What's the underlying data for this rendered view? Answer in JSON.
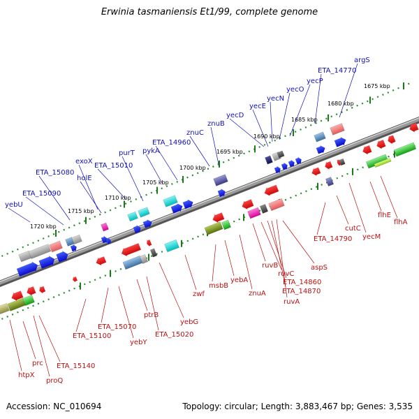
{
  "title": "Erwinia tasmaniensis Et1/99, complete genome",
  "footer": {
    "accession": "Accession: NC_010694",
    "topology": "Topology: circular; Length: 3,883,467 bp; Genes: 3,535"
  },
  "scale_labels": [
    "1720 kbp",
    "1715 kbp",
    "1710 kbp",
    "1705 kbp",
    "1700 kbp",
    "1695 kbp",
    "1690 kbp",
    "1685 kbp",
    "1680 kbp",
    "1675 kbp"
  ],
  "top_strand_genes": [
    "yebU",
    "ETA_15090",
    "ETA_15080",
    "holE",
    "exoX",
    "ETA_15010",
    "purT",
    "pykA",
    "ETA_14960",
    "znuC",
    "znuB",
    "yecD",
    "yecE",
    "yecN",
    "yecO",
    "yecP",
    "ETA_14770",
    "argS"
  ],
  "bottom_strand_genes": [
    "htpX",
    "prc",
    "proQ",
    "ETA_15140",
    "ETA_15100",
    "ETA_15070",
    "yebY",
    "ptrB",
    "ETA_15020",
    "yebG",
    "zwf",
    "msbB",
    "yebA",
    "znuA",
    "ruvB",
    "ruvC",
    "ETA_14860",
    "ETA_14870",
    "ruvA",
    "aspS",
    "ETA_14790",
    "cutC",
    "yecM",
    "flhE",
    "flhA"
  ],
  "colors": {
    "backbone": "#808080",
    "top_label": "#1111bb",
    "bottom_label": "#bb1111",
    "tick": "#1a7a1a"
  }
}
